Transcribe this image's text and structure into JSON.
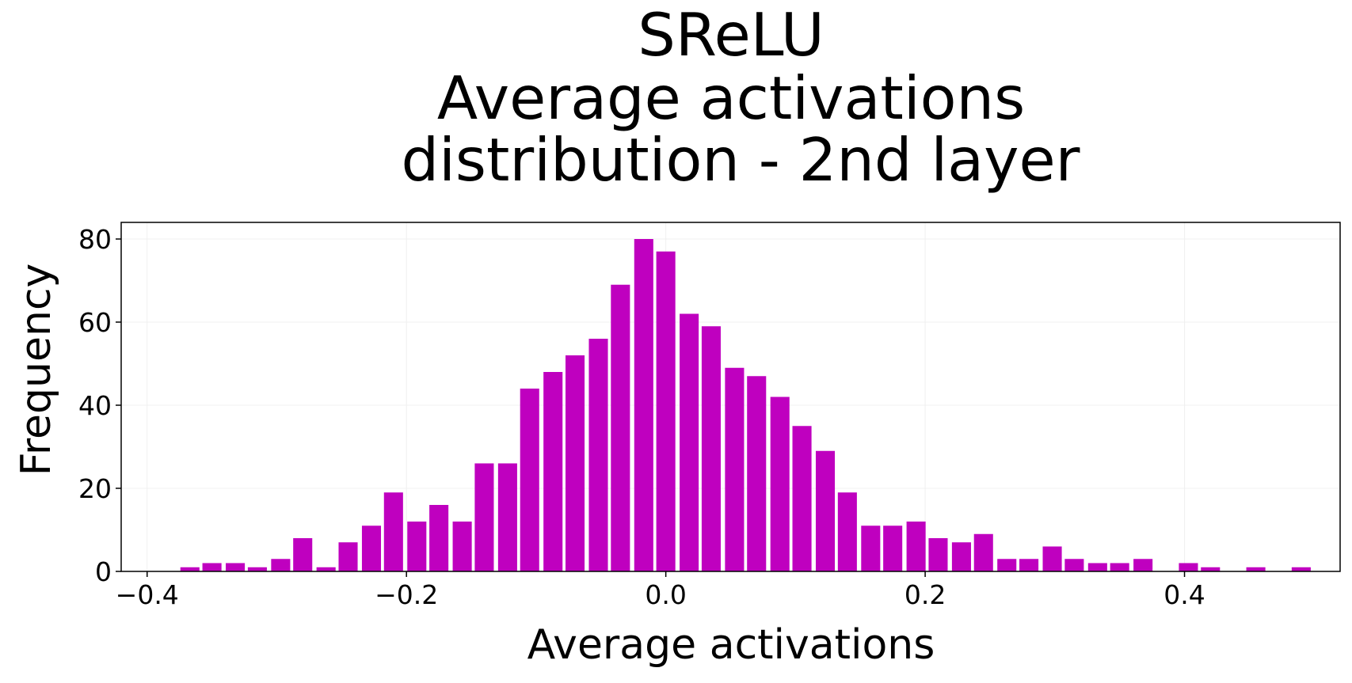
{
  "chart_data": {
    "type": "bar",
    "title_lines": [
      "SReLU",
      "Average activations",
      "distribution - 2nd layer"
    ],
    "xlabel": "Average activations",
    "ylabel": "Frequency",
    "xlim": [
      -0.42,
      0.52
    ],
    "ylim": [
      0,
      84
    ],
    "xticks": [
      -0.4,
      -0.2,
      0.0,
      0.2,
      0.4
    ],
    "xtick_labels": [
      "−0.4",
      "−0.2",
      "0.0",
      "0.2",
      "0.4"
    ],
    "yticks": [
      0,
      20,
      40,
      60,
      80
    ],
    "ytick_labels": [
      "0",
      "20",
      "40",
      "60",
      "80"
    ],
    "grid": true,
    "bar_color": "#bf00bf",
    "bin_width": 0.0175,
    "x": [
      -0.367,
      -0.35,
      -0.332,
      -0.315,
      -0.297,
      -0.28,
      -0.262,
      -0.245,
      -0.227,
      -0.21,
      -0.192,
      -0.175,
      -0.157,
      -0.14,
      -0.122,
      -0.105,
      -0.087,
      -0.07,
      -0.052,
      -0.035,
      -0.017,
      0.0,
      0.018,
      0.035,
      0.053,
      0.07,
      0.088,
      0.105,
      0.123,
      0.14,
      0.158,
      0.175,
      0.193,
      0.21,
      0.228,
      0.245,
      0.263,
      0.28,
      0.298,
      0.315,
      0.333,
      0.35,
      0.368,
      0.385,
      0.403,
      0.42,
      0.438,
      0.455,
      0.473,
      0.49
    ],
    "values": [
      1,
      2,
      2,
      1,
      3,
      8,
      1,
      7,
      11,
      19,
      12,
      16,
      12,
      26,
      26,
      44,
      48,
      52,
      56,
      69,
      80,
      77,
      62,
      59,
      49,
      47,
      42,
      35,
      29,
      19,
      11,
      11,
      12,
      8,
      7,
      9,
      3,
      3,
      6,
      3,
      2,
      2,
      3,
      0,
      2,
      1,
      0,
      1,
      0,
      1
    ]
  }
}
